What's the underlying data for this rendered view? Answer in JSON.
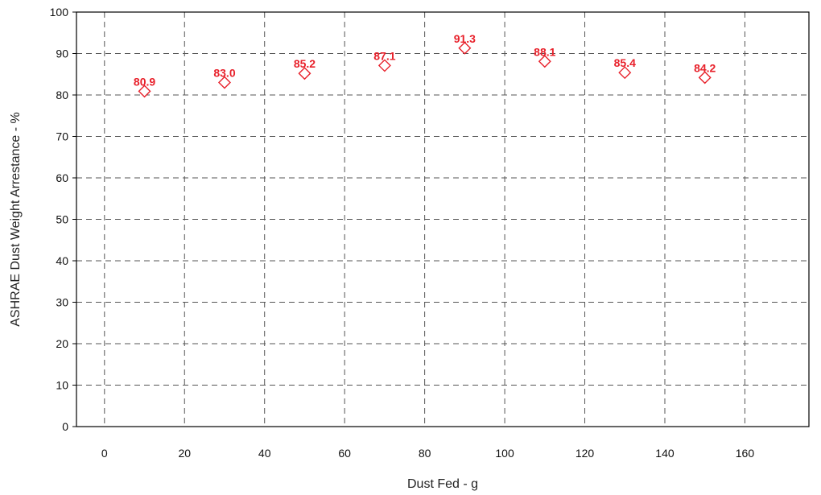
{
  "chart_data": {
    "type": "scatter",
    "title": "",
    "xlabel": "Dust Fed - g",
    "ylabel": "ASHRAE Dust Weight Arrestance - %",
    "xlim": [
      -7,
      176
    ],
    "ylim": [
      0,
      100
    ],
    "x_ticks": [
      0,
      20,
      40,
      60,
      80,
      100,
      120,
      140,
      160
    ],
    "y_ticks": [
      0,
      10,
      20,
      30,
      40,
      50,
      60,
      70,
      80,
      90,
      100
    ],
    "grid": true,
    "grid_style": "dashed",
    "marker": "open-diamond",
    "series": [
      {
        "name": "",
        "color": "#e8202a",
        "points": [
          {
            "x": 10,
            "y": 80.9,
            "label": "80.9"
          },
          {
            "x": 30,
            "y": 83.0,
            "label": "83.0"
          },
          {
            "x": 50,
            "y": 85.2,
            "label": "85.2"
          },
          {
            "x": 70,
            "y": 87.1,
            "label": "87.1"
          },
          {
            "x": 90,
            "y": 91.3,
            "label": "91.3"
          },
          {
            "x": 110,
            "y": 88.1,
            "label": "88.1"
          },
          {
            "x": 130,
            "y": 85.4,
            "label": "85.4"
          },
          {
            "x": 150,
            "y": 84.2,
            "label": "84.2"
          }
        ]
      }
    ]
  }
}
